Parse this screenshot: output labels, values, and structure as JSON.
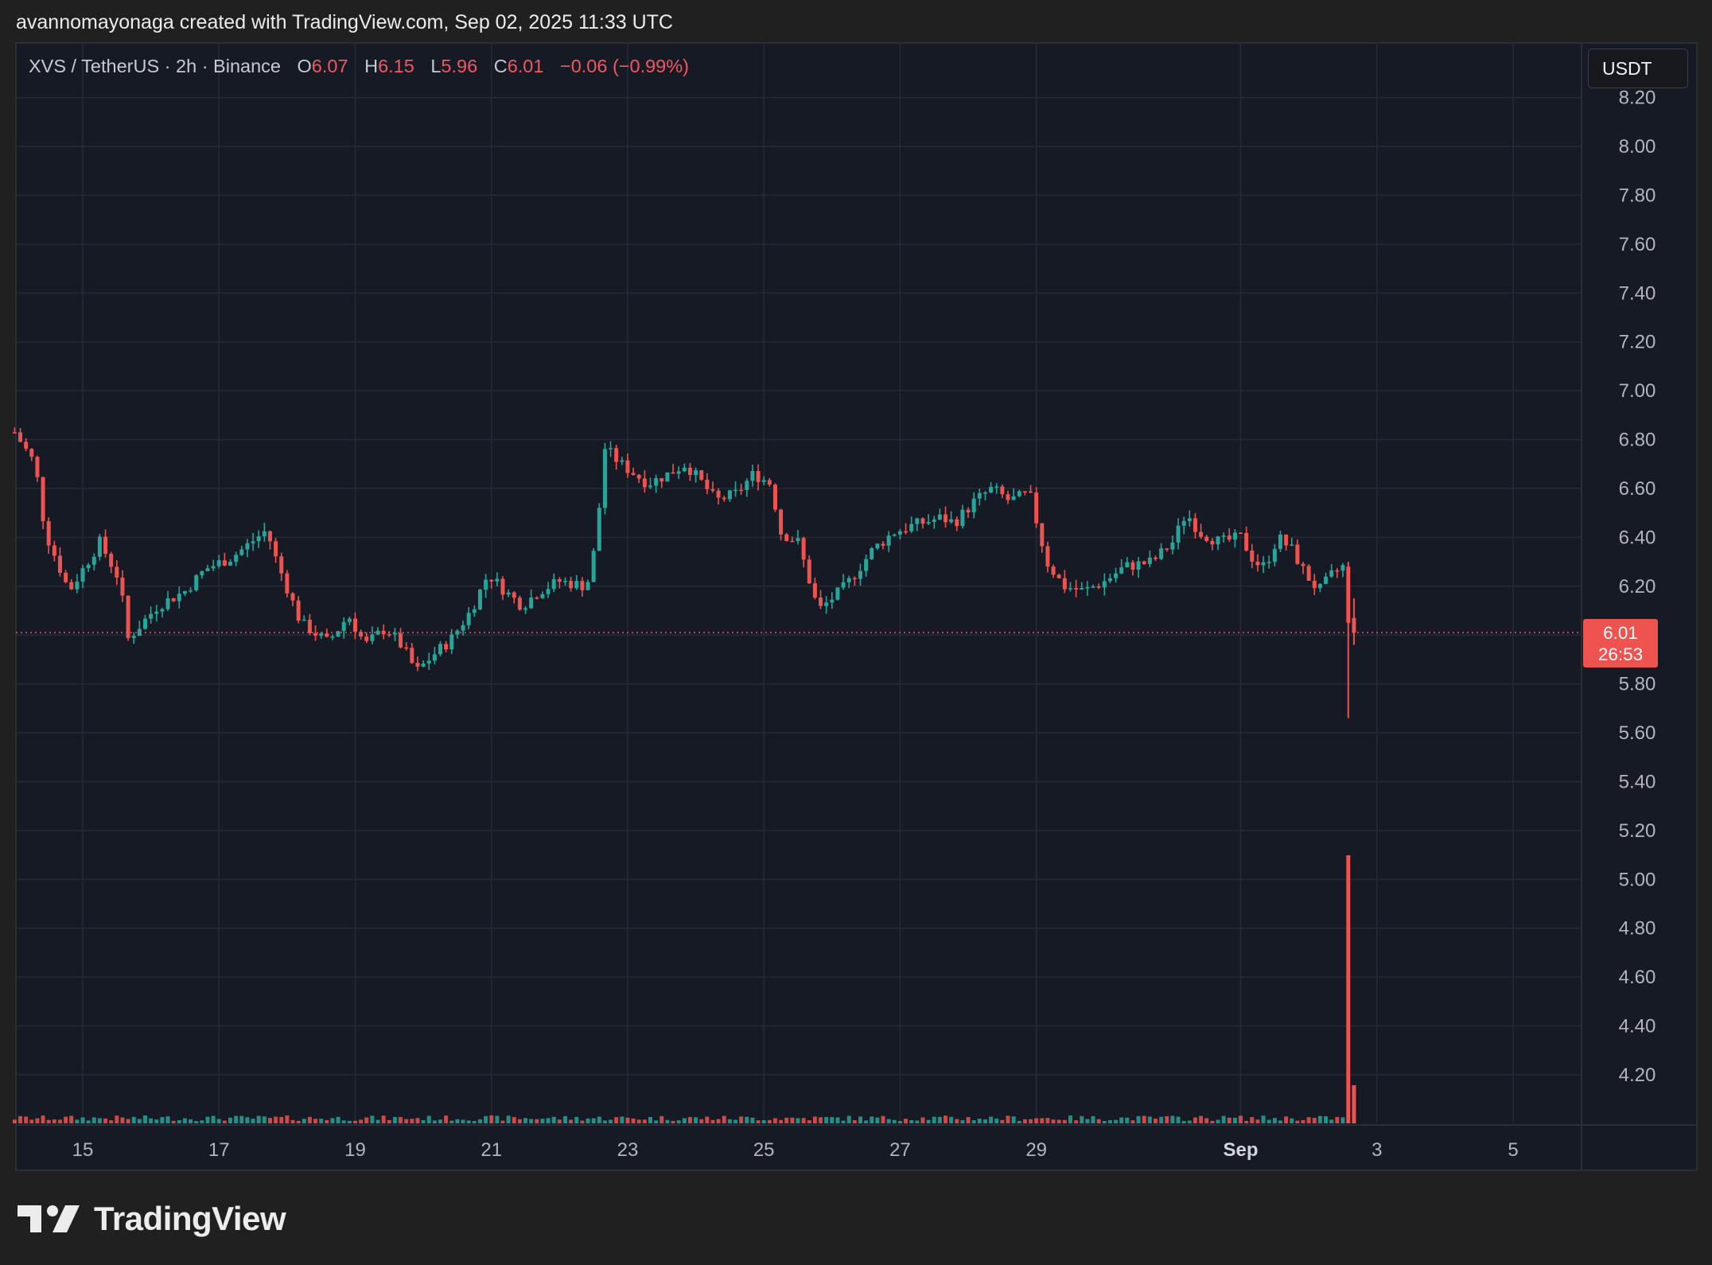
{
  "header": {
    "attribution": "avannomayonaga created with TradingView.com, Sep 02, 2025 11:33 UTC"
  },
  "legend": {
    "symbol": "XVS / TetherUS · 2h · Binance",
    "open_label": "O",
    "open": "6.07",
    "high_label": "H",
    "high": "6.15",
    "low_label": "L",
    "low": "5.96",
    "close_label": "C",
    "close": "6.01",
    "change": "−0.06 (−0.99%)"
  },
  "currency_button": "USDT",
  "price_badge": {
    "price": "6.01",
    "countdown": "26:53"
  },
  "brand": {
    "name": "TradingView"
  },
  "colors": {
    "up": "#26a69a",
    "down": "#ef5350",
    "background": "#161a25",
    "grid": "#262a36",
    "frame": "#202020"
  },
  "chart_data": {
    "type": "candlestick",
    "symbol": "XVS / TetherUS",
    "interval": "2h",
    "exchange": "Binance",
    "y_ticks": [
      8.2,
      8.0,
      7.8,
      7.6,
      7.4,
      7.2,
      7.0,
      6.8,
      6.6,
      6.4,
      6.2,
      5.8,
      5.6,
      5.4,
      5.2,
      5.0,
      4.8,
      4.6,
      4.4,
      4.2
    ],
    "y_tick_labels": [
      "8.20",
      "8.00",
      "7.80",
      "7.60",
      "7.40",
      "7.20",
      "7.00",
      "6.80",
      "6.60",
      "6.40",
      "6.20",
      "5.80",
      "5.60",
      "5.40",
      "5.20",
      "5.00",
      "4.80",
      "4.60",
      "4.40",
      "4.20"
    ],
    "ylim": [
      3.99,
      8.21
    ],
    "x_tick_labels": [
      {
        "label": "15",
        "day": 15,
        "bold": false
      },
      {
        "label": "17",
        "day": 17,
        "bold": false
      },
      {
        "label": "19",
        "day": 19,
        "bold": false
      },
      {
        "label": "21",
        "day": 21,
        "bold": false
      },
      {
        "label": "23",
        "day": 23,
        "bold": false
      },
      {
        "label": "25",
        "day": 25,
        "bold": false
      },
      {
        "label": "27",
        "day": 27,
        "bold": false
      },
      {
        "label": "29",
        "day": 29,
        "bold": false
      },
      {
        "label": "Sep",
        "day": 32,
        "bold": true
      },
      {
        "label": "3",
        "day": 34,
        "bold": false
      },
      {
        "label": "5",
        "day": 36,
        "bold": false
      }
    ],
    "xlim_days": [
      14.01,
      37.0
    ],
    "last_price": 6.01,
    "path_points": [
      [
        14.0,
        6.83
      ],
      [
        14.3,
        6.7
      ],
      [
        14.45,
        6.42
      ],
      [
        14.8,
        6.18
      ],
      [
        15.25,
        6.38
      ],
      [
        15.55,
        6.22
      ],
      [
        15.65,
        5.98
      ],
      [
        16.1,
        6.12
      ],
      [
        16.5,
        6.18
      ],
      [
        16.8,
        6.27
      ],
      [
        17.2,
        6.32
      ],
      [
        17.7,
        6.43
      ],
      [
        17.85,
        6.3
      ],
      [
        18.2,
        6.05
      ],
      [
        18.6,
        5.97
      ],
      [
        18.9,
        6.08
      ],
      [
        19.15,
        5.96
      ],
      [
        19.45,
        6.03
      ],
      [
        19.7,
        5.95
      ],
      [
        19.9,
        5.85
      ],
      [
        20.15,
        5.92
      ],
      [
        20.4,
        5.98
      ],
      [
        20.7,
        6.1
      ],
      [
        20.95,
        6.25
      ],
      [
        21.2,
        6.18
      ],
      [
        21.45,
        6.12
      ],
      [
        21.7,
        6.18
      ],
      [
        22.0,
        6.22
      ],
      [
        22.4,
        6.2
      ],
      [
        22.55,
        6.4
      ],
      [
        22.65,
        6.77
      ],
      [
        22.9,
        6.7
      ],
      [
        23.3,
        6.62
      ],
      [
        23.6,
        6.66
      ],
      [
        23.85,
        6.7
      ],
      [
        24.1,
        6.62
      ],
      [
        24.3,
        6.55
      ],
      [
        24.6,
        6.58
      ],
      [
        24.85,
        6.66
      ],
      [
        25.1,
        6.62
      ],
      [
        25.25,
        6.42
      ],
      [
        25.5,
        6.38
      ],
      [
        25.8,
        6.1
      ],
      [
        26.2,
        6.2
      ],
      [
        26.6,
        6.35
      ],
      [
        26.9,
        6.42
      ],
      [
        27.2,
        6.45
      ],
      [
        27.6,
        6.48
      ],
      [
        27.8,
        6.46
      ],
      [
        28.1,
        6.55
      ],
      [
        28.35,
        6.6
      ],
      [
        28.6,
        6.55
      ],
      [
        28.9,
        6.58
      ],
      [
        29.15,
        6.3
      ],
      [
        29.4,
        6.2
      ],
      [
        29.7,
        6.18
      ],
      [
        30.0,
        6.22
      ],
      [
        30.3,
        6.28
      ],
      [
        30.7,
        6.3
      ],
      [
        31.0,
        6.38
      ],
      [
        31.2,
        6.5
      ],
      [
        31.4,
        6.42
      ],
      [
        31.7,
        6.38
      ],
      [
        32.0,
        6.4
      ],
      [
        32.2,
        6.3
      ],
      [
        32.35,
        6.28
      ],
      [
        32.55,
        6.4
      ],
      [
        32.75,
        6.35
      ],
      [
        32.95,
        6.25
      ],
      [
        33.15,
        6.18
      ],
      [
        33.35,
        6.25
      ],
      [
        33.5,
        6.28
      ],
      [
        33.58,
        6.22
      ],
      [
        33.7,
        6.01
      ]
    ],
    "volume_note": "low flat volume across period, spike of about 47% of the 4.20–4.00 band height multiplied x5 at the final bars",
    "volume_spike": {
      "day": 33.58,
      "relative_height": 1.0,
      "next_relative_height": 0.14
    }
  }
}
